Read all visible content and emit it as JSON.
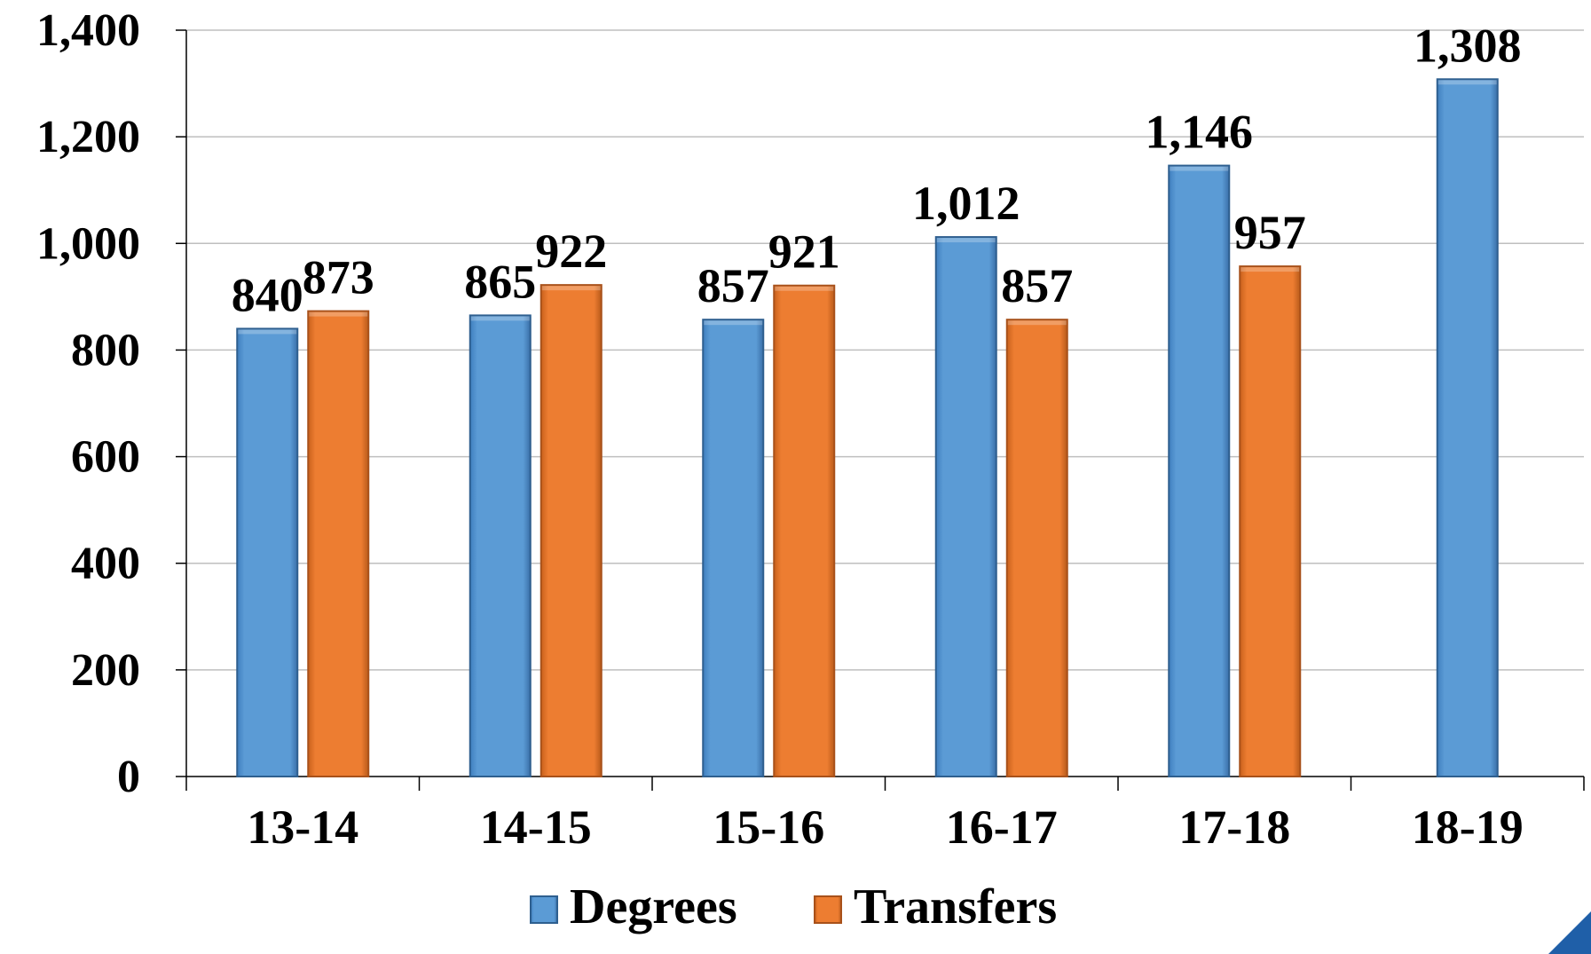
{
  "chart_data": {
    "type": "bar",
    "categories": [
      "13-14",
      "14-15",
      "15-16",
      "16-17",
      "17-18",
      "18-19"
    ],
    "series": [
      {
        "name": "Degrees",
        "values": [
          840,
          865,
          857,
          1012,
          1146,
          1308
        ],
        "labels": [
          "840",
          "865",
          "857",
          "1,012",
          "1,146",
          "1,308"
        ]
      },
      {
        "name": "Transfers",
        "values": [
          873,
          922,
          921,
          857,
          957,
          null
        ],
        "labels": [
          "873",
          "922",
          "921",
          "857",
          "957",
          ""
        ]
      }
    ],
    "ylim": [
      0,
      1400
    ],
    "yticks": [
      0,
      200,
      400,
      600,
      800,
      1000,
      1200,
      1400
    ],
    "ytick_labels": [
      "0",
      "200",
      "400",
      "600",
      "800",
      "1,000",
      "1,200",
      "1,400"
    ],
    "grid": true,
    "legend_position": "bottom",
    "colors": {
      "Degrees": "#5b9bd5",
      "Transfers": "#ed7d31"
    },
    "title": "",
    "xlabel": "",
    "ylabel": ""
  }
}
